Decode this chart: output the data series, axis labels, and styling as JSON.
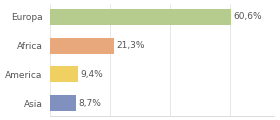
{
  "categories": [
    "Europa",
    "Africa",
    "America",
    "Asia"
  ],
  "values": [
    60.6,
    21.3,
    9.4,
    8.7
  ],
  "labels": [
    "60,6%",
    "21,3%",
    "9,4%",
    "8,7%"
  ],
  "bar_colors": [
    "#b5cc8e",
    "#e8a87c",
    "#f0d060",
    "#8090bf"
  ],
  "background_color": "#ffffff",
  "xlim": [
    0,
    75
  ],
  "bar_height": 0.55,
  "label_fontsize": 6.5,
  "tick_fontsize": 6.5
}
